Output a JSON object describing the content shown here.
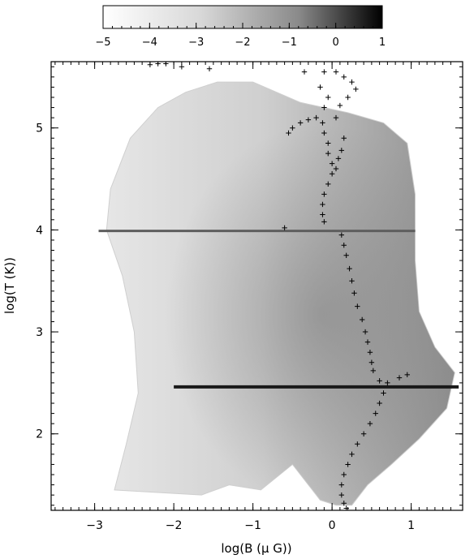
{
  "chart_data": {
    "type": "heatmap",
    "title": "",
    "xlabel": "log(B (μ G))",
    "ylabel": "log(T (K))",
    "xlim": [
      -3.55,
      1.65
    ],
    "ylim": [
      1.25,
      5.65
    ],
    "x_ticks": [
      -3,
      -2,
      -1,
      0,
      1
    ],
    "y_ticks": [
      2,
      3,
      4,
      5
    ],
    "x_tick_labels": [
      "−3",
      "−2",
      "−1",
      "0",
      "1"
    ],
    "y_tick_labels": [
      "2",
      "3",
      "4",
      "5"
    ],
    "grid": false,
    "colorbar": {
      "position": "top",
      "range": [
        -5,
        1
      ],
      "ticks": [
        -5,
        -4,
        -3,
        -2,
        -1,
        0,
        1
      ],
      "tick_labels": [
        "−5",
        "−4",
        "−3",
        "−2",
        "−1",
        "0",
        "1"
      ],
      "colormap": "gray_reversed"
    },
    "colors": {
      "low": "#ffffff",
      "high": "#000000",
      "markers": "#000000"
    },
    "distribution_boundary": {
      "description_units": "data units (logB, logT)",
      "left_edge": [
        [
          -2.75,
          1.45
        ],
        [
          -2.6,
          1.9
        ],
        [
          -2.45,
          2.4
        ],
        [
          -2.5,
          3.0
        ],
        [
          -2.65,
          3.55
        ],
        [
          -2.85,
          4.0
        ],
        [
          -2.8,
          4.4
        ],
        [
          -2.55,
          4.9
        ],
        [
          -2.2,
          5.2
        ],
        [
          -1.85,
          5.35
        ],
        [
          -1.45,
          5.45
        ]
      ],
      "right_edge": [
        [
          -1.0,
          5.45
        ],
        [
          -0.4,
          5.25
        ],
        [
          0.2,
          5.15
        ],
        [
          0.65,
          5.05
        ],
        [
          0.95,
          4.85
        ],
        [
          1.05,
          4.35
        ],
        [
          1.05,
          3.7
        ],
        [
          1.1,
          3.2
        ],
        [
          1.3,
          2.85
        ],
        [
          1.55,
          2.6
        ],
        [
          1.45,
          2.25
        ],
        [
          1.1,
          1.95
        ],
        [
          0.75,
          1.7
        ],
        [
          0.45,
          1.5
        ],
        [
          0.25,
          1.3
        ]
      ],
      "bottom_edge": [
        [
          -1.65,
          1.4
        ],
        [
          -1.3,
          1.5
        ],
        [
          -0.9,
          1.45
        ],
        [
          -0.5,
          1.7
        ],
        [
          -0.15,
          1.35
        ],
        [
          0.05,
          1.3
        ]
      ]
    },
    "dense_bands": [
      {
        "logT": 3.99,
        "logB_range": [
          -2.95,
          1.05
        ],
        "level": -1.2
      },
      {
        "logT": 2.46,
        "logB_range": [
          -2.0,
          1.6
        ],
        "level": 0.4
      }
    ],
    "markers": {
      "symbol": "+",
      "points": [
        [
          -2.3,
          5.62
        ],
        [
          -2.2,
          5.63
        ],
        [
          -2.1,
          5.63
        ],
        [
          -1.9,
          5.6
        ],
        [
          -1.55,
          5.58
        ],
        [
          -0.6,
          4.02
        ],
        [
          -0.55,
          4.95
        ],
        [
          -0.5,
          5.0
        ],
        [
          -0.4,
          5.05
        ],
        [
          -0.3,
          5.08
        ],
        [
          -0.2,
          5.1
        ],
        [
          -0.35,
          5.55
        ],
        [
          -0.1,
          5.55
        ],
        [
          -0.15,
          5.4
        ],
        [
          -0.05,
          5.3
        ],
        [
          -0.1,
          5.2
        ],
        [
          -0.12,
          5.05
        ],
        [
          -0.1,
          4.95
        ],
        [
          -0.05,
          4.85
        ],
        [
          -0.05,
          4.75
        ],
        [
          0.0,
          4.65
        ],
        [
          0.0,
          4.55
        ],
        [
          -0.05,
          4.45
        ],
        [
          -0.1,
          4.35
        ],
        [
          -0.12,
          4.25
        ],
        [
          -0.12,
          4.15
        ],
        [
          -0.1,
          4.08
        ],
        [
          0.05,
          5.55
        ],
        [
          0.15,
          5.5
        ],
        [
          0.25,
          5.45
        ],
        [
          0.3,
          5.38
        ],
        [
          0.2,
          5.3
        ],
        [
          0.1,
          5.22
        ],
        [
          0.05,
          5.1
        ],
        [
          0.15,
          4.9
        ],
        [
          0.12,
          4.78
        ],
        [
          0.08,
          4.7
        ],
        [
          0.05,
          4.6
        ],
        [
          0.12,
          3.95
        ],
        [
          0.15,
          3.85
        ],
        [
          0.18,
          3.75
        ],
        [
          0.22,
          3.62
        ],
        [
          0.25,
          3.5
        ],
        [
          0.28,
          3.38
        ],
        [
          0.32,
          3.25
        ],
        [
          0.38,
          3.12
        ],
        [
          0.42,
          3.0
        ],
        [
          0.45,
          2.9
        ],
        [
          0.48,
          2.8
        ],
        [
          0.5,
          2.7
        ],
        [
          0.52,
          2.62
        ],
        [
          0.6,
          2.52
        ],
        [
          0.7,
          2.5
        ],
        [
          0.85,
          2.55
        ],
        [
          0.95,
          2.58
        ],
        [
          0.65,
          2.4
        ],
        [
          0.6,
          2.3
        ],
        [
          0.55,
          2.2
        ],
        [
          0.48,
          2.1
        ],
        [
          0.4,
          2.0
        ],
        [
          0.32,
          1.9
        ],
        [
          0.25,
          1.8
        ],
        [
          0.2,
          1.7
        ],
        [
          0.15,
          1.6
        ],
        [
          0.12,
          1.5
        ],
        [
          0.12,
          1.4
        ],
        [
          0.15,
          1.32
        ],
        [
          0.18,
          1.27
        ]
      ]
    }
  }
}
